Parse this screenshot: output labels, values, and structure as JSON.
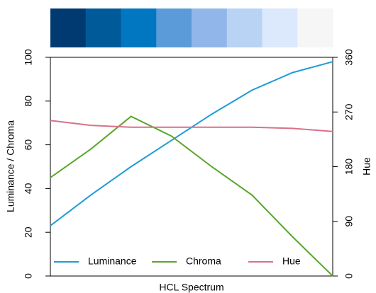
{
  "chart_data": {
    "type": "line",
    "xlabel": "HCL Spectrum",
    "ylabel": "Luminance / Chroma",
    "y2label": "Hue",
    "categories": [
      null,
      null,
      null,
      null,
      null,
      null,
      null,
      null
    ],
    "palette": [
      "#003a70",
      "#005a99",
      "#0077c0",
      "#5b9bd9",
      "#90b6ea",
      "#b9d3f4",
      "#dce8fb",
      "#f6f6f6"
    ],
    "series": [
      {
        "name": "Luminance",
        "color": "#1f9bd7",
        "values": [
          23,
          37,
          50,
          62,
          74,
          85,
          93,
          98
        ]
      },
      {
        "name": "Chroma",
        "color": "#5aa52a",
        "values": [
          45,
          58,
          73,
          64,
          50,
          37,
          18,
          0
        ]
      },
      {
        "name": "Hue",
        "color": "#d9708a",
        "axis": "y2",
        "values": [
          256,
          248,
          245,
          245,
          245,
          245,
          243,
          238
        ]
      }
    ],
    "ylim": [
      0,
      100
    ],
    "yticks": [
      0,
      20,
      40,
      60,
      80,
      100
    ],
    "y2lim": [
      0,
      360
    ],
    "y2ticks": [
      0,
      90,
      180,
      270,
      360
    ],
    "legend": "bottom"
  }
}
